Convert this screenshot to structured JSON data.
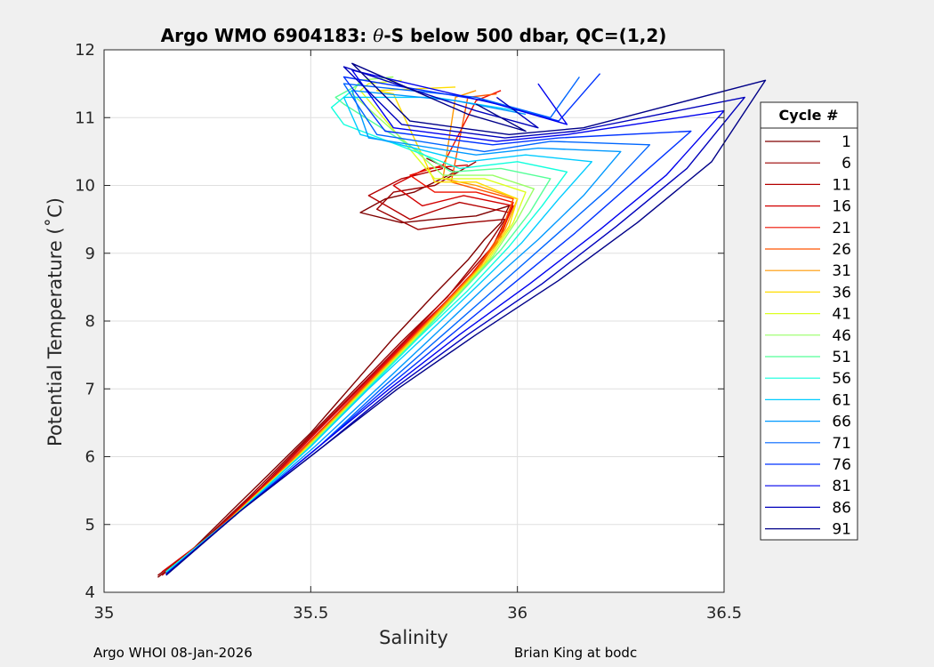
{
  "chart_data": {
    "type": "line",
    "title_prefix": "Argo WMO 6904183: ",
    "title_symbol": "θ",
    "title_suffix": "-S below 500 dbar,  QC=(1,2)",
    "xlabel": "Salinity",
    "ylabel": "Potential Temperature (˚C)",
    "xlim": [
      35,
      36.5
    ],
    "ylim": [
      4,
      12
    ],
    "xticks": [
      "35",
      "35.5",
      "36",
      "36.5"
    ],
    "yticks": [
      "4",
      "5",
      "6",
      "7",
      "8",
      "9",
      "10",
      "11",
      "12"
    ],
    "grid": true,
    "legend": {
      "title": "Cycle #",
      "placement": "right",
      "entries": [
        {
          "label": "1",
          "color": "#800000"
        },
        {
          "label": "6",
          "color": "#9a0000"
        },
        {
          "label": "11",
          "color": "#b40000"
        },
        {
          "label": "16",
          "color": "#d20000"
        },
        {
          "label": "21",
          "color": "#ee1100"
        },
        {
          "label": "26",
          "color": "#ff5500"
        },
        {
          "label": "31",
          "color": "#ff9900"
        },
        {
          "label": "36",
          "color": "#ffdd00"
        },
        {
          "label": "41",
          "color": "#ddff22"
        },
        {
          "label": "46",
          "color": "#99ff66"
        },
        {
          "label": "51",
          "color": "#55ff99"
        },
        {
          "label": "56",
          "color": "#11ffdd"
        },
        {
          "label": "61",
          "color": "#00ccff"
        },
        {
          "label": "66",
          "color": "#0099ff"
        },
        {
          "label": "71",
          "color": "#0066ff"
        },
        {
          "label": "76",
          "color": "#0033ff"
        },
        {
          "label": "81",
          "color": "#0000ee"
        },
        {
          "label": "86",
          "color": "#0000bb"
        },
        {
          "label": "91",
          "color": "#000088"
        }
      ]
    },
    "series": [
      {
        "name": "1",
        "color": "#800000",
        "x": [
          35.13,
          35.2,
          35.3,
          35.4,
          35.5,
          35.6,
          35.7,
          35.8,
          35.88,
          35.92,
          35.96,
          35.98,
          35.9,
          35.8,
          35.72,
          35.62,
          35.68,
          35.75,
          35.85,
          35.78
        ],
        "y": [
          4.22,
          4.55,
          5.15,
          5.75,
          6.35,
          7.05,
          7.75,
          8.4,
          8.9,
          9.2,
          9.45,
          9.7,
          9.55,
          9.5,
          9.45,
          9.6,
          9.8,
          9.9,
          10.2,
          10.4
        ]
      },
      {
        "name": "6",
        "color": "#9a0000",
        "x": [
          35.13,
          35.22,
          35.35,
          35.48,
          35.6,
          35.72,
          35.83,
          35.91,
          35.97,
          35.88,
          35.76,
          35.66,
          35.7,
          35.8,
          35.9
        ],
        "y": [
          4.25,
          4.65,
          5.4,
          6.2,
          6.95,
          7.7,
          8.35,
          8.95,
          9.5,
          9.45,
          9.35,
          9.65,
          9.9,
          10.0,
          10.35
        ]
      },
      {
        "name": "11",
        "color": "#b40000",
        "x": [
          35.14,
          35.25,
          35.38,
          35.5,
          35.63,
          35.75,
          35.86,
          35.94,
          35.98,
          35.86,
          35.74,
          35.64,
          35.72,
          35.82
        ],
        "y": [
          4.25,
          4.8,
          5.55,
          6.3,
          7.1,
          7.85,
          8.55,
          9.1,
          9.6,
          9.75,
          9.5,
          9.85,
          10.1,
          10.25
        ]
      },
      {
        "name": "16",
        "color": "#d20000",
        "x": [
          35.14,
          35.26,
          35.4,
          35.52,
          35.65,
          35.77,
          35.88,
          35.95,
          35.99,
          35.87,
          35.77,
          35.7,
          35.78,
          35.88
        ],
        "y": [
          4.3,
          4.85,
          5.65,
          6.4,
          7.2,
          7.95,
          8.6,
          9.15,
          9.7,
          9.85,
          9.7,
          10.0,
          10.25,
          10.3
        ]
      },
      {
        "name": "21",
        "color": "#ee1100",
        "x": [
          35.15,
          35.28,
          35.42,
          35.55,
          35.67,
          35.79,
          35.89,
          35.96,
          35.99,
          35.9,
          35.8,
          35.74,
          35.82,
          35.9,
          35.96
        ],
        "y": [
          4.3,
          4.95,
          5.75,
          6.55,
          7.3,
          8.05,
          8.7,
          9.25,
          9.75,
          9.9,
          9.9,
          10.15,
          10.3,
          11.25,
          11.4
        ]
      },
      {
        "name": "26",
        "color": "#ff5500",
        "x": [
          35.15,
          35.28,
          35.43,
          35.56,
          35.69,
          35.8,
          35.9,
          35.96,
          35.99,
          35.9,
          35.84,
          35.88,
          35.95
        ],
        "y": [
          4.3,
          4.95,
          5.8,
          6.6,
          7.4,
          8.1,
          8.75,
          9.3,
          9.8,
          9.95,
          10.05,
          11.3,
          11.35
        ]
      },
      {
        "name": "31",
        "color": "#ff9900",
        "x": [
          35.15,
          35.3,
          35.45,
          35.58,
          35.7,
          35.81,
          35.91,
          35.97,
          36.0,
          35.9,
          35.82,
          35.85,
          35.9
        ],
        "y": [
          4.3,
          5.05,
          5.9,
          6.7,
          7.45,
          8.15,
          8.8,
          9.35,
          9.8,
          10.0,
          10.1,
          11.3,
          11.4
        ]
      },
      {
        "name": "36",
        "color": "#ffdd00",
        "x": [
          35.15,
          35.3,
          35.46,
          35.59,
          35.72,
          35.83,
          35.92,
          35.98,
          36.0,
          35.9,
          35.8,
          35.7,
          35.66,
          35.85
        ],
        "y": [
          4.3,
          5.05,
          5.95,
          6.75,
          7.55,
          8.25,
          8.85,
          9.4,
          9.8,
          10.05,
          10.05,
          11.35,
          11.4,
          11.45
        ]
      },
      {
        "name": "41",
        "color": "#ddff22",
        "x": [
          35.15,
          35.31,
          35.47,
          35.6,
          35.73,
          35.84,
          35.93,
          35.99,
          36.02,
          35.92,
          35.8,
          35.62,
          35.64,
          35.72
        ],
        "y": [
          4.3,
          5.1,
          6.0,
          6.8,
          7.6,
          8.3,
          8.9,
          9.45,
          9.9,
          10.1,
          10.1,
          11.4,
          11.5,
          11.55
        ]
      },
      {
        "name": "46",
        "color": "#99ff66",
        "x": [
          35.15,
          35.31,
          35.48,
          35.61,
          35.74,
          35.85,
          35.94,
          36.0,
          36.04,
          35.94,
          35.82,
          35.6,
          35.62,
          35.7
        ],
        "y": [
          4.3,
          5.1,
          6.05,
          6.85,
          7.65,
          8.35,
          8.95,
          9.5,
          9.95,
          10.15,
          10.15,
          11.35,
          11.55,
          11.6
        ]
      },
      {
        "name": "51",
        "color": "#55ff99",
        "x": [
          35.15,
          35.32,
          35.49,
          35.62,
          35.75,
          35.86,
          35.96,
          36.03,
          36.08,
          35.96,
          35.84,
          35.58,
          35.56,
          35.62
        ],
        "y": [
          4.3,
          5.15,
          6.1,
          6.9,
          7.7,
          8.4,
          9.05,
          9.6,
          10.1,
          10.25,
          10.2,
          11.2,
          11.3,
          11.5
        ]
      },
      {
        "name": "56",
        "color": "#11ffdd",
        "x": [
          35.15,
          35.32,
          35.5,
          35.63,
          35.76,
          35.88,
          35.98,
          36.06,
          36.12,
          36.0,
          35.86,
          35.58,
          35.55,
          35.6
        ],
        "y": [
          4.3,
          5.15,
          6.15,
          6.95,
          7.75,
          8.45,
          9.1,
          9.7,
          10.2,
          10.35,
          10.25,
          10.9,
          11.15,
          11.4
        ]
      },
      {
        "name": "61",
        "color": "#00ccff",
        "x": [
          35.15,
          35.33,
          35.5,
          35.64,
          35.78,
          35.9,
          36.01,
          36.1,
          36.18,
          36.02,
          35.88,
          35.62,
          35.58,
          35.8,
          36.0
        ],
        "y": [
          4.28,
          5.2,
          6.15,
          7.0,
          7.8,
          8.5,
          9.15,
          9.8,
          10.35,
          10.45,
          10.35,
          10.75,
          11.3,
          11.3,
          11.1
        ]
      },
      {
        "name": "66",
        "color": "#0099ff",
        "x": [
          35.15,
          35.33,
          35.51,
          35.66,
          35.8,
          35.93,
          36.05,
          36.16,
          36.25,
          36.05,
          35.9,
          35.64,
          35.6,
          35.85,
          36.02
        ],
        "y": [
          4.28,
          5.2,
          6.15,
          7.0,
          7.8,
          8.55,
          9.2,
          9.85,
          10.5,
          10.55,
          10.45,
          10.7,
          11.4,
          11.25,
          11.05
        ]
      },
      {
        "name": "71",
        "color": "#0066ff",
        "x": [
          35.15,
          35.33,
          35.52,
          35.67,
          35.82,
          35.96,
          36.09,
          36.22,
          36.32,
          36.08,
          35.92,
          35.66,
          35.58,
          35.9,
          36.08,
          36.15
        ],
        "y": [
          4.27,
          5.2,
          6.15,
          7.0,
          7.8,
          8.55,
          9.25,
          9.95,
          10.6,
          10.65,
          10.5,
          10.75,
          11.5,
          11.3,
          11.0,
          11.6
        ]
      },
      {
        "name": "76",
        "color": "#0033ff",
        "x": [
          35.15,
          35.33,
          35.52,
          35.68,
          35.84,
          35.99,
          36.14,
          36.28,
          36.42,
          36.1,
          35.94,
          35.68,
          35.58,
          35.92,
          36.1,
          36.2
        ],
        "y": [
          4.27,
          5.2,
          6.15,
          7.0,
          7.8,
          8.55,
          9.3,
          10.05,
          10.8,
          10.7,
          10.6,
          10.8,
          11.6,
          11.25,
          10.95,
          11.65
        ]
      },
      {
        "name": "81",
        "color": "#0000ee",
        "x": [
          35.15,
          35.33,
          35.52,
          35.69,
          35.86,
          36.03,
          36.2,
          36.36,
          36.5,
          36.12,
          35.95,
          35.7,
          35.6,
          35.95,
          36.12,
          36.05
        ],
        "y": [
          4.26,
          5.2,
          6.15,
          7.0,
          7.8,
          8.55,
          9.35,
          10.15,
          11.1,
          10.75,
          10.65,
          10.85,
          11.7,
          11.2,
          10.9,
          11.5
        ]
      },
      {
        "name": "86",
        "color": "#0000bb",
        "x": [
          35.15,
          35.33,
          35.53,
          35.7,
          35.88,
          36.06,
          36.24,
          36.41,
          36.55,
          36.14,
          35.97,
          35.72,
          35.58,
          35.9,
          36.05,
          35.95
        ],
        "y": [
          4.26,
          5.2,
          6.15,
          7.0,
          7.8,
          8.55,
          9.4,
          10.25,
          11.3,
          10.8,
          10.7,
          10.9,
          11.75,
          11.1,
          10.85,
          11.3
        ]
      },
      {
        "name": "91",
        "color": "#000088",
        "x": [
          35.15,
          35.33,
          35.53,
          35.71,
          35.9,
          36.1,
          36.29,
          36.47,
          36.6,
          36.16,
          35.98,
          35.74,
          35.6,
          35.88,
          36.02,
          35.9
        ],
        "y": [
          4.25,
          5.2,
          6.15,
          7.0,
          7.8,
          8.6,
          9.45,
          10.35,
          11.55,
          10.85,
          10.75,
          10.95,
          11.8,
          11.05,
          10.8,
          11.2
        ]
      }
    ]
  },
  "footer": {
    "left": "Argo WHOI 08-Jan-2026",
    "right": "Brian King at bodc"
  }
}
